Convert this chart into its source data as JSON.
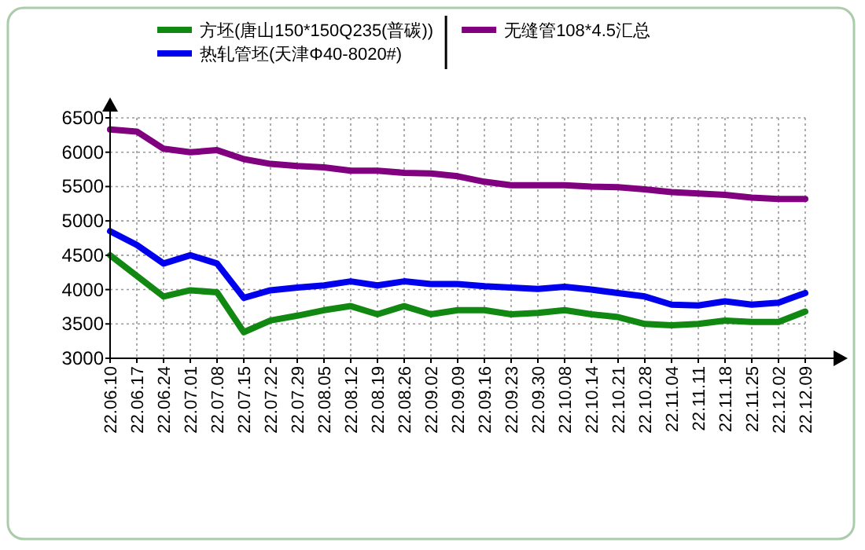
{
  "chart_data": {
    "type": "line",
    "categories": [
      "22.06.10",
      "22.06.17",
      "22.06.24",
      "22.07.01",
      "22.07.08",
      "22.07.15",
      "22.07.22",
      "22.07.29",
      "22.08.05",
      "22.08.12",
      "22.08.19",
      "22.08.26",
      "22.09.02",
      "22.09.09",
      "22.09.16",
      "22.09.23",
      "22.09.30",
      "22.10.08",
      "22.10.14",
      "22.10.21",
      "22.10.28",
      "22.11.04",
      "22.11.11",
      "22.11.18",
      "22.11.25",
      "22.12.02",
      "22.12.09"
    ],
    "series": [
      {
        "name": "方坯(唐山150*150Q235(普碳))",
        "color": "#118811",
        "values": [
          4500,
          4200,
          3900,
          3990,
          3960,
          3380,
          3550,
          3620,
          3700,
          3760,
          3640,
          3760,
          3640,
          3700,
          3700,
          3640,
          3660,
          3700,
          3640,
          3600,
          3500,
          3480,
          3500,
          3550,
          3530,
          3530,
          3680
        ]
      },
      {
        "name": "热轧管坯(天津Φ40-8020#)",
        "color": "#0000ee",
        "values": [
          4850,
          4650,
          4380,
          4500,
          4380,
          3880,
          3990,
          4030,
          4060,
          4120,
          4060,
          4120,
          4080,
          4080,
          4050,
          4030,
          4010,
          4040,
          4000,
          3950,
          3900,
          3780,
          3770,
          3830,
          3780,
          3810,
          3950
        ]
      },
      {
        "name": "无缝管108*4.5汇总",
        "color": "#800080",
        "values": [
          6330,
          6300,
          6050,
          6000,
          6030,
          5900,
          5830,
          5800,
          5780,
          5730,
          5730,
          5700,
          5690,
          5650,
          5570,
          5520,
          5520,
          5520,
          5500,
          5490,
          5460,
          5420,
          5400,
          5380,
          5340,
          5320,
          5320
        ]
      }
    ],
    "ylim": [
      3000,
      6500
    ],
    "yticks": [
      3000,
      3500,
      4000,
      4500,
      5000,
      5500,
      6000,
      6500
    ],
    "grid": true,
    "legend": "top"
  }
}
